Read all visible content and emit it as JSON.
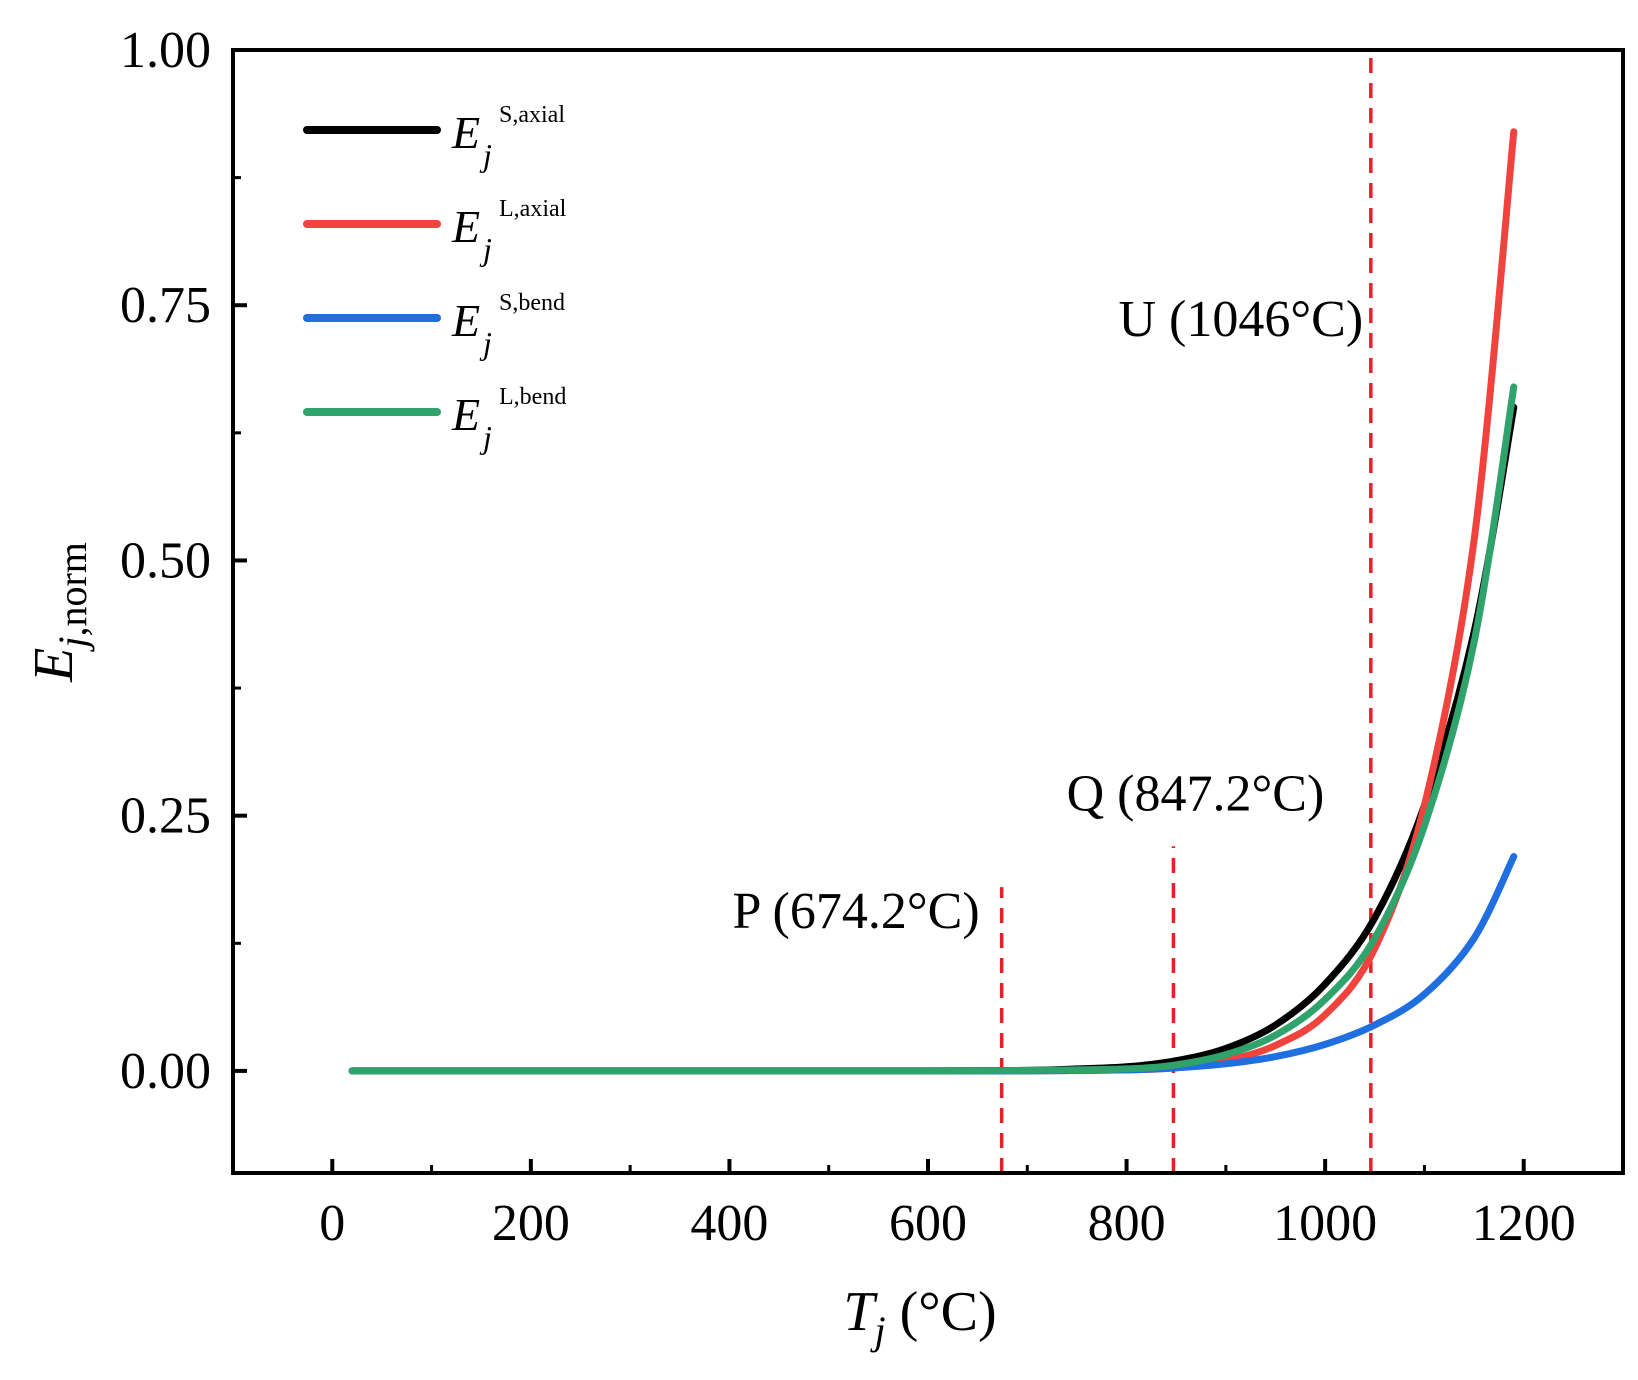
{
  "chart_data": {
    "type": "line",
    "xlabel": {
      "main": "T",
      "sub": "j",
      "unit": " (°C)"
    },
    "ylabel": {
      "main": "E",
      "sub": "j,norm"
    },
    "xlim": [
      -100,
      1300
    ],
    "ylim": [
      -0.1,
      1.0
    ],
    "xticks": [
      0,
      200,
      400,
      600,
      800,
      1000,
      1200
    ],
    "xtick_labels": [
      "0",
      "200",
      "400",
      "600",
      "800",
      "1000",
      "1200"
    ],
    "xminor": [
      100,
      300,
      500,
      700,
      900,
      1100
    ],
    "yticks": [
      0.0,
      0.25,
      0.5,
      0.75,
      1.0
    ],
    "ytick_labels": [
      "0.00",
      "0.25",
      "0.50",
      "0.75",
      "1.00"
    ],
    "yminor": [
      0.125,
      0.375,
      0.625,
      0.875
    ],
    "legend_position": "top-left",
    "series": [
      {
        "name": "S,axial",
        "legend_main": "E",
        "legend_sub": "j",
        "legend_sup": "S,axial",
        "color": "#000000",
        "x": [
          20,
          200,
          400,
          600,
          700,
          750,
          800,
          850,
          900,
          950,
          1000,
          1050,
          1100,
          1150,
          1190
        ],
        "y": [
          0,
          0,
          0,
          0,
          0.0005,
          0.002,
          0.004,
          0.01,
          0.022,
          0.045,
          0.085,
          0.15,
          0.26,
          0.43,
          0.65
        ]
      },
      {
        "name": "L,axial",
        "legend_main": "E",
        "legend_sub": "j",
        "legend_sup": "L,axial",
        "color": "#f0433e",
        "x": [
          20,
          200,
          400,
          600,
          700,
          800,
          850,
          900,
          950,
          1000,
          1050,
          1100,
          1150,
          1190
        ],
        "y": [
          0,
          0,
          0,
          0,
          0,
          0.001,
          0.003,
          0.01,
          0.025,
          0.055,
          0.12,
          0.26,
          0.52,
          0.92
        ]
      },
      {
        "name": "S,bend",
        "legend_main": "E",
        "legend_sub": "j",
        "legend_sup": "S,bend",
        "color": "#1f6fe0",
        "x": [
          20,
          200,
          400,
          600,
          700,
          800,
          850,
          900,
          950,
          1000,
          1050,
          1100,
          1150,
          1190
        ],
        "y": [
          0,
          0,
          0,
          0,
          0,
          0.001,
          0.003,
          0.007,
          0.014,
          0.026,
          0.045,
          0.075,
          0.13,
          0.21
        ]
      },
      {
        "name": "L,bend",
        "legend_main": "E",
        "legend_sub": "j",
        "legend_sup": "L,bend",
        "color": "#2fa36b",
        "x": [
          20,
          200,
          400,
          600,
          700,
          800,
          850,
          900,
          950,
          1000,
          1050,
          1100,
          1150,
          1190
        ],
        "y": [
          0,
          0,
          0,
          0,
          0.0005,
          0.002,
          0.006,
          0.016,
          0.035,
          0.07,
          0.13,
          0.24,
          0.42,
          0.67
        ]
      }
    ],
    "vlines": [
      {
        "x": 674.2,
        "label": "P (674.2°C)",
        "ymax": 0.18,
        "label_y": 0.14,
        "color": "#e8202a"
      },
      {
        "x": 847.2,
        "label": "Q (847.2°C)",
        "ymax": 0.22,
        "label_y": 0.255,
        "color": "#e8202a"
      },
      {
        "x": 1046,
        "label": "U (1046°C)",
        "ymax": 1.0,
        "label_y": 0.72,
        "color": "#e8202a"
      }
    ]
  }
}
